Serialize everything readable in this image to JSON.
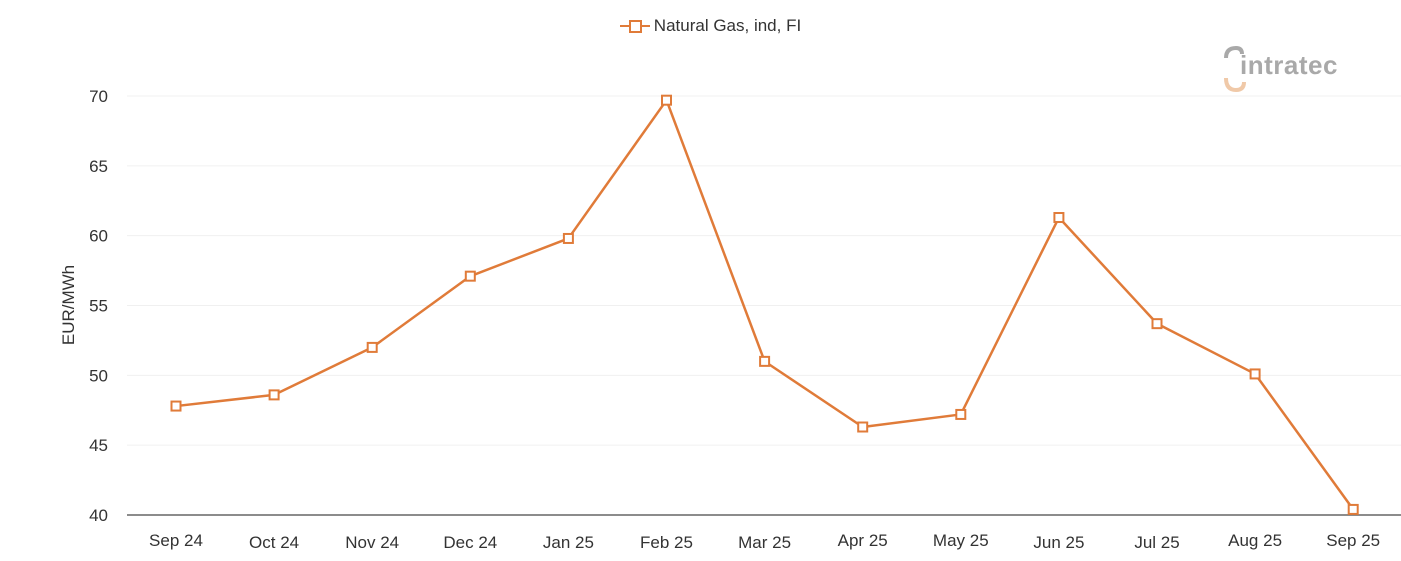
{
  "legend": {
    "series_name": "Natural Gas, ind, FI",
    "marker": "open-square-line"
  },
  "logo": {
    "text": "intratec"
  },
  "colors": {
    "series": "#e07b39",
    "grid": "#f0f0f0",
    "axis": "#666666",
    "logo_gray": "#a9a9a9",
    "logo_orange": "#f0c9a8"
  },
  "chart_data": {
    "type": "line",
    "title": "",
    "xlabel": "",
    "ylabel": "EUR/MWh",
    "ylim": [
      40,
      70
    ],
    "yticks": [
      40,
      45,
      50,
      55,
      60,
      65,
      70
    ],
    "grid": true,
    "legend_position": "top-center",
    "categories": [
      "Sep 24",
      "Oct 24",
      "Nov 24",
      "Dec 24",
      "Jan 25",
      "Feb 25",
      "Mar 25",
      "Apr 25",
      "May 25",
      "Jun 25",
      "Jul 25",
      "Aug 25",
      "Sep 25"
    ],
    "series": [
      {
        "name": "Natural Gas, ind, FI",
        "values": [
          47.8,
          48.6,
          52.0,
          57.1,
          59.8,
          69.7,
          51.0,
          46.3,
          47.2,
          61.3,
          53.7,
          50.1,
          40.4
        ]
      }
    ]
  }
}
